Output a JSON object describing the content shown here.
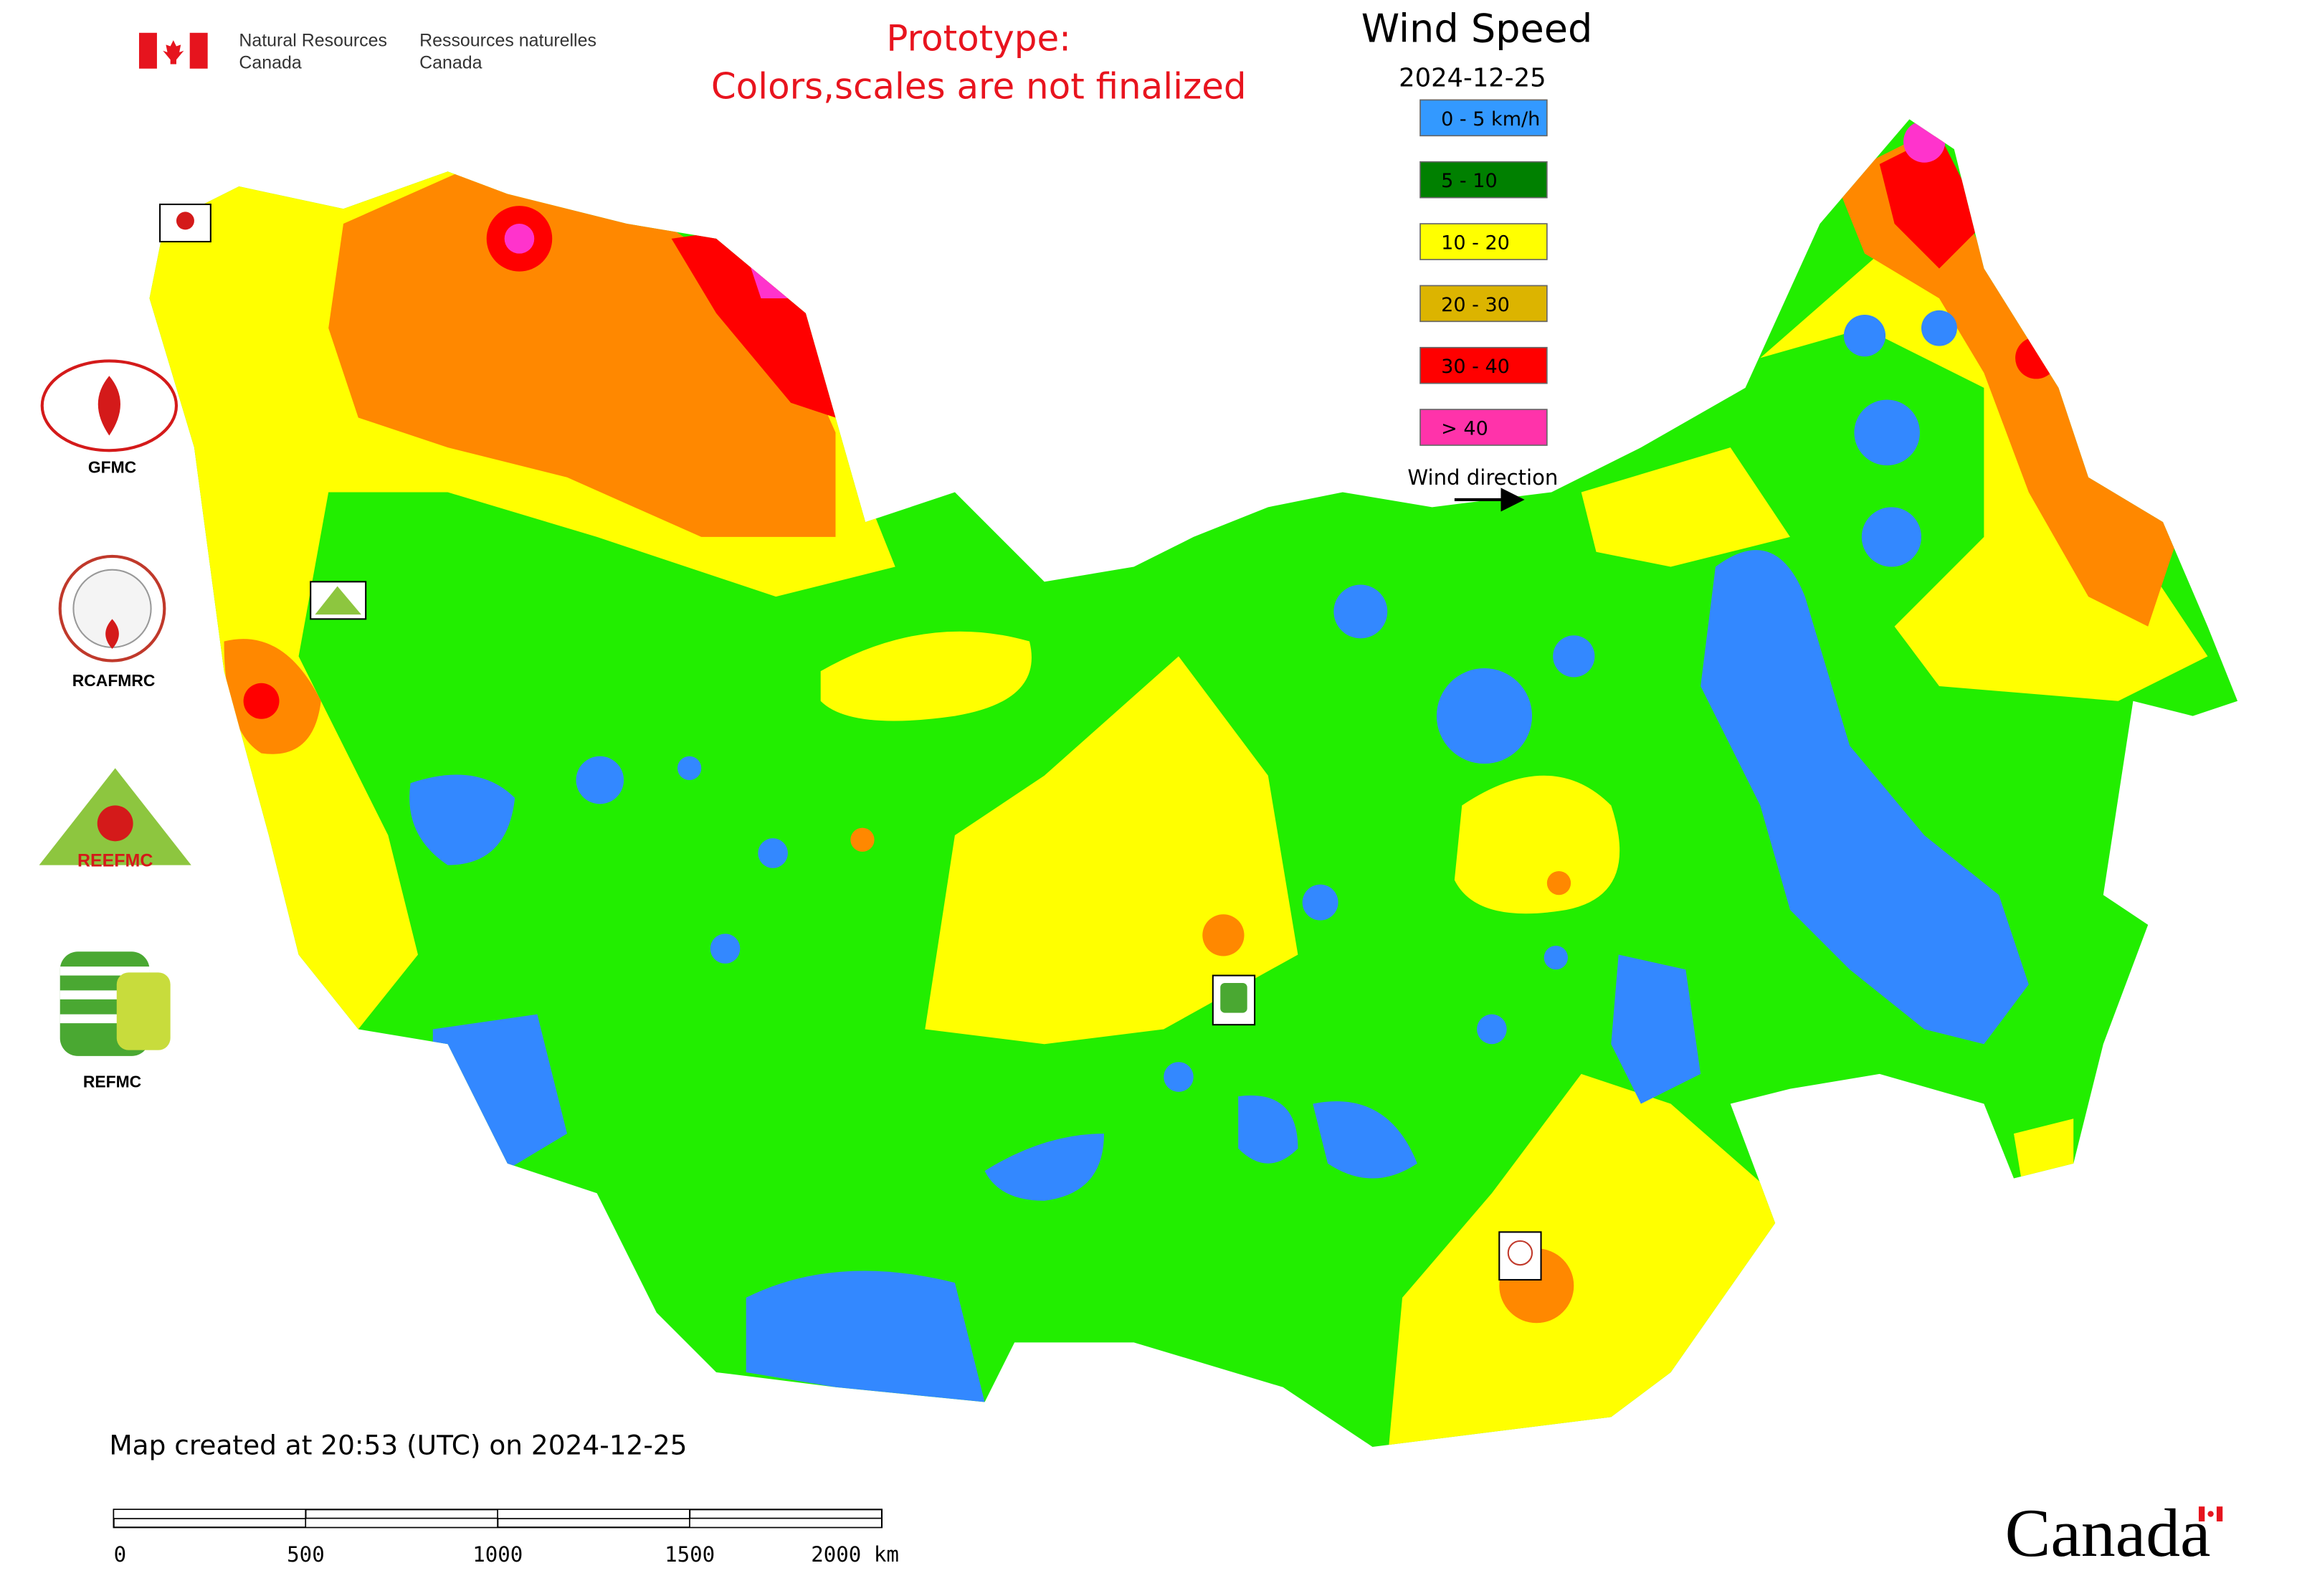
{
  "header": {
    "agency_en": [
      "Natural Resources",
      "Canada"
    ],
    "agency_fr": [
      "Ressources naturelles",
      "Canada"
    ],
    "notice": [
      "Prototype:",
      "Colors,scales are not finalized"
    ]
  },
  "legend": {
    "title": "Wind Speed",
    "date": "2024-12-25",
    "items": [
      {
        "label": "0 - 5 km/h",
        "color": "#3399ff"
      },
      {
        "label": "5 - 10",
        "color": "#008000"
      },
      {
        "label": "10 - 20",
        "color": "#ffff00"
      },
      {
        "label": "20 - 30",
        "color": "#dcb400"
      },
      {
        "label": "30 - 40",
        "color": "#ff0000"
      },
      {
        "label": "> 40",
        "color": "#ff33aa"
      }
    ],
    "direction_label": "Wind direction"
  },
  "logos": [
    "GFMC",
    "RCAFMRC",
    "REEFMC",
    "REFMC"
  ],
  "footer": {
    "created": "Map created at 20:53 (UTC) on 2024-12-25",
    "scale_labels": [
      "0",
      "500",
      "1000",
      "1500",
      "2000 km"
    ],
    "wordmark": "Canada"
  }
}
